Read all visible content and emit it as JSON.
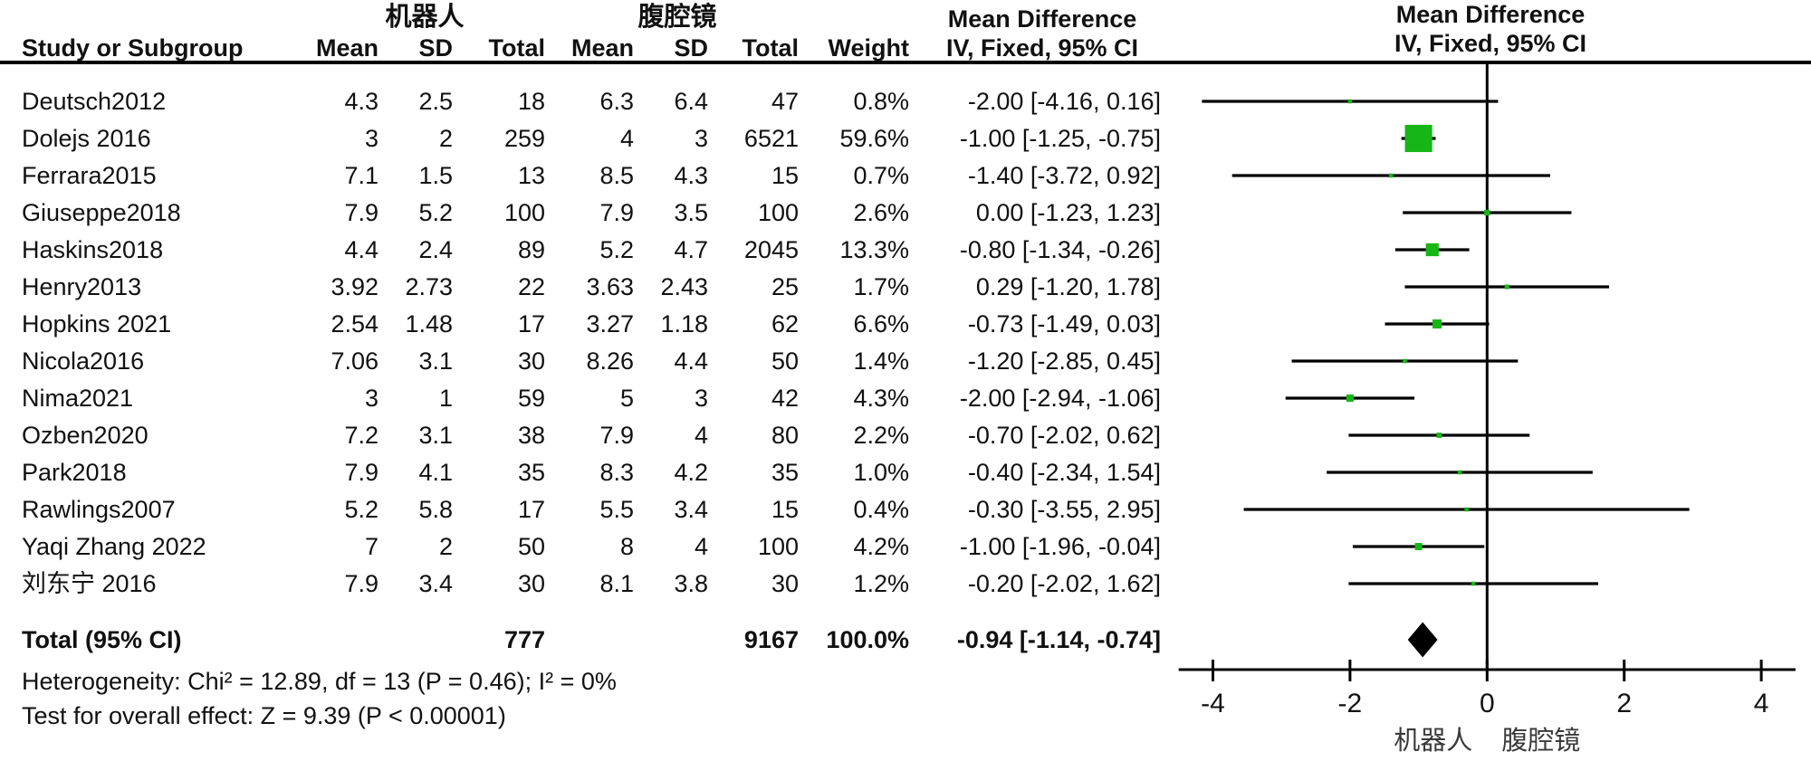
{
  "group_headers": {
    "robot": "机器人",
    "lap": "腹腔镜"
  },
  "columns": {
    "study": "Study or Subgroup",
    "mean": "Mean",
    "sd": "SD",
    "total": "Total",
    "weight": "Weight"
  },
  "effect_header": {
    "line1": "Mean Difference",
    "line2": "IV, Fixed, 95% CI"
  },
  "plot_header": {
    "line1": "Mean Difference",
    "line2": "IV, Fixed, 95% CI"
  },
  "studies": [
    {
      "name": "Deutsch2012",
      "mean1": "4.3",
      "sd1": "2.5",
      "total1": "18",
      "mean2": "6.3",
      "sd2": "6.4",
      "total2": "47",
      "weight": "0.8%",
      "ci": "-2.00 [-4.16, 0.16]"
    },
    {
      "name": "Dolejs 2016",
      "mean1": "3",
      "sd1": "2",
      "total1": "259",
      "mean2": "4",
      "sd2": "3",
      "total2": "6521",
      "weight": "59.6%",
      "ci": "-1.00 [-1.25, -0.75]"
    },
    {
      "name": "Ferrara2015",
      "mean1": "7.1",
      "sd1": "1.5",
      "total1": "13",
      "mean2": "8.5",
      "sd2": "4.3",
      "total2": "15",
      "weight": "0.7%",
      "ci": "-1.40 [-3.72, 0.92]"
    },
    {
      "name": "Giuseppe2018",
      "mean1": "7.9",
      "sd1": "5.2",
      "total1": "100",
      "mean2": "7.9",
      "sd2": "3.5",
      "total2": "100",
      "weight": "2.6%",
      "ci": "0.00 [-1.23, 1.23]"
    },
    {
      "name": "Haskins2018",
      "mean1": "4.4",
      "sd1": "2.4",
      "total1": "89",
      "mean2": "5.2",
      "sd2": "4.7",
      "total2": "2045",
      "weight": "13.3%",
      "ci": "-0.80 [-1.34, -0.26]"
    },
    {
      "name": "Henry2013",
      "mean1": "3.92",
      "sd1": "2.73",
      "total1": "22",
      "mean2": "3.63",
      "sd2": "2.43",
      "total2": "25",
      "weight": "1.7%",
      "ci": "0.29 [-1.20, 1.78]"
    },
    {
      "name": "Hopkins 2021",
      "mean1": "2.54",
      "sd1": "1.48",
      "total1": "17",
      "mean2": "3.27",
      "sd2": "1.18",
      "total2": "62",
      "weight": "6.6%",
      "ci": "-0.73 [-1.49, 0.03]"
    },
    {
      "name": "Nicola2016",
      "mean1": "7.06",
      "sd1": "3.1",
      "total1": "30",
      "mean2": "8.26",
      "sd2": "4.4",
      "total2": "50",
      "weight": "1.4%",
      "ci": "-1.20 [-2.85, 0.45]"
    },
    {
      "name": "Nima2021",
      "mean1": "3",
      "sd1": "1",
      "total1": "59",
      "mean2": "5",
      "sd2": "3",
      "total2": "42",
      "weight": "4.3%",
      "ci": "-2.00 [-2.94, -1.06]"
    },
    {
      "name": "Ozben2020",
      "mean1": "7.2",
      "sd1": "3.1",
      "total1": "38",
      "mean2": "7.9",
      "sd2": "4",
      "total2": "80",
      "weight": "2.2%",
      "ci": "-0.70 [-2.02, 0.62]"
    },
    {
      "name": "Park2018",
      "mean1": "7.9",
      "sd1": "4.1",
      "total1": "35",
      "mean2": "8.3",
      "sd2": "4.2",
      "total2": "35",
      "weight": "1.0%",
      "ci": "-0.40 [-2.34, 1.54]"
    },
    {
      "name": "Rawlings2007",
      "mean1": "5.2",
      "sd1": "5.8",
      "total1": "17",
      "mean2": "5.5",
      "sd2": "3.4",
      "total2": "15",
      "weight": "0.4%",
      "ci": "-0.30 [-3.55, 2.95]"
    },
    {
      "name": "Yaqi Zhang 2022",
      "mean1": "7",
      "sd1": "2",
      "total1": "50",
      "mean2": "8",
      "sd2": "4",
      "total2": "100",
      "weight": "4.2%",
      "ci": "-1.00 [-1.96, -0.04]"
    },
    {
      "name": "刘东宁 2016",
      "mean1": "7.9",
      "sd1": "3.4",
      "total1": "30",
      "mean2": "8.1",
      "sd2": "3.8",
      "total2": "30",
      "weight": "1.2%",
      "ci": "-0.20 [-2.02, 1.62]"
    }
  ],
  "total": {
    "label": "Total (95% CI)",
    "total1": "777",
    "total2": "9167",
    "weight": "100.0%",
    "ci": "-0.94 [-1.14, -0.74]"
  },
  "footer": {
    "heterogeneity": "Heterogeneity: Chi² = 12.89, df = 13 (P = 0.46); I² = 0%",
    "overall": "Test for overall effect: Z = 9.39 (P < 0.00001)"
  },
  "chart_data": {
    "type": "forest",
    "effect_measure": "Mean Difference, IV, Fixed, 95% CI",
    "xlim": [
      -4.5,
      4.5
    ],
    "x_ticks": [
      -4,
      -2,
      0,
      2,
      4
    ],
    "favours_left": "机器人",
    "favours_right": "腹腔镜",
    "marker_color": "#17b617",
    "line_color": "#000000",
    "studies": [
      "Deutsch2012",
      "Dolejs 2016",
      "Ferrara2015",
      "Giuseppe2018",
      "Haskins2018",
      "Henry2013",
      "Hopkins 2021",
      "Nicola2016",
      "Nima2021",
      "Ozben2020",
      "Park2018",
      "Rawlings2007",
      "Yaqi Zhang 2022",
      "刘东宁 2016"
    ],
    "md": [
      -2.0,
      -1.0,
      -1.4,
      0.0,
      -0.8,
      0.29,
      -0.73,
      -1.2,
      -2.0,
      -0.7,
      -0.4,
      -0.3,
      -1.0,
      -0.2
    ],
    "ci_low": [
      -4.16,
      -1.25,
      -3.72,
      -1.23,
      -1.34,
      -1.2,
      -1.49,
      -2.85,
      -2.94,
      -2.02,
      -2.34,
      -3.55,
      -1.96,
      -2.02
    ],
    "ci_high": [
      0.16,
      -0.75,
      0.92,
      1.23,
      -0.26,
      1.78,
      0.03,
      0.45,
      -1.06,
      0.62,
      1.54,
      2.95,
      -0.04,
      1.62
    ],
    "weights_pct": [
      0.8,
      59.6,
      0.7,
      2.6,
      13.3,
      1.7,
      6.6,
      1.4,
      4.3,
      2.2,
      1.0,
      0.4,
      4.2,
      1.2
    ],
    "total": {
      "md": -0.94,
      "ci_low": -1.14,
      "ci_high": -0.74
    }
  }
}
